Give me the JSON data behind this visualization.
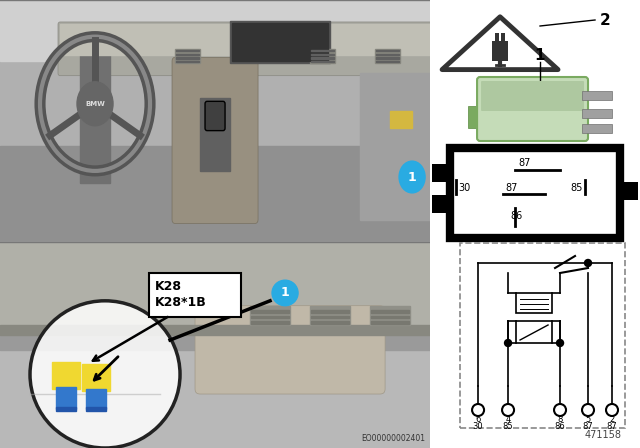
{
  "bg_color": "#ffffff",
  "label_1_color": "#29abe2",
  "ref_number": "471158",
  "eo_number": "EO00000002401",
  "k28_label": "K28",
  "k28_1b_label": "K28*1B",
  "pin_numbers": [
    "6",
    "4",
    "8",
    "5",
    "2"
  ],
  "pin_labels": [
    "30",
    "85",
    "86",
    "87",
    "87"
  ],
  "relay_green": "#c8dfc0",
  "relay_border": "#7aaa70",
  "schematic_dash_color": "#888888",
  "black": "#000000",
  "dark_gray": "#444444",
  "mid_gray": "#888888",
  "light_gray": "#cccccc"
}
